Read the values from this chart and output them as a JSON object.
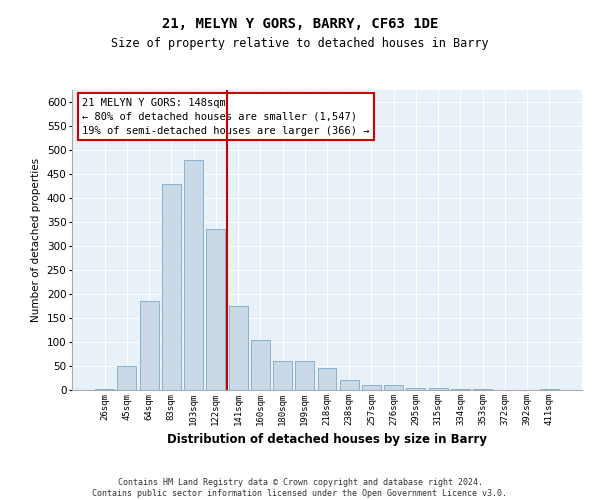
{
  "title": "21, MELYN Y GORS, BARRY, CF63 1DE",
  "subtitle": "Size of property relative to detached houses in Barry",
  "xlabel": "Distribution of detached houses by size in Barry",
  "ylabel": "Number of detached properties",
  "categories": [
    "26sqm",
    "45sqm",
    "64sqm",
    "83sqm",
    "103sqm",
    "122sqm",
    "141sqm",
    "160sqm",
    "180sqm",
    "199sqm",
    "218sqm",
    "238sqm",
    "257sqm",
    "276sqm",
    "295sqm",
    "315sqm",
    "334sqm",
    "353sqm",
    "372sqm",
    "392sqm",
    "411sqm"
  ],
  "values": [
    3,
    50,
    185,
    430,
    480,
    335,
    175,
    105,
    60,
    60,
    45,
    20,
    10,
    10,
    5,
    5,
    3,
    2,
    1,
    1,
    2
  ],
  "bar_color": "#c9d9e8",
  "bar_edge_color": "#7aaac8",
  "bar_edge_width": 0.6,
  "background_color": "#e8f0f8",
  "grid_color": "#ffffff",
  "ylim": [
    0,
    625
  ],
  "yticks": [
    0,
    50,
    100,
    150,
    200,
    250,
    300,
    350,
    400,
    450,
    500,
    550,
    600
  ],
  "marker_color": "#cc0000",
  "annotation_lines": [
    "21 MELYN Y GORS: 148sqm",
    "← 80% of detached houses are smaller (1,547)",
    "19% of semi-detached houses are larger (366) →"
  ],
  "annotation_box_color": "#ffffff",
  "annotation_box_edge": "#cc0000",
  "footer_line1": "Contains HM Land Registry data © Crown copyright and database right 2024.",
  "footer_line2": "Contains public sector information licensed under the Open Government Licence v3.0."
}
